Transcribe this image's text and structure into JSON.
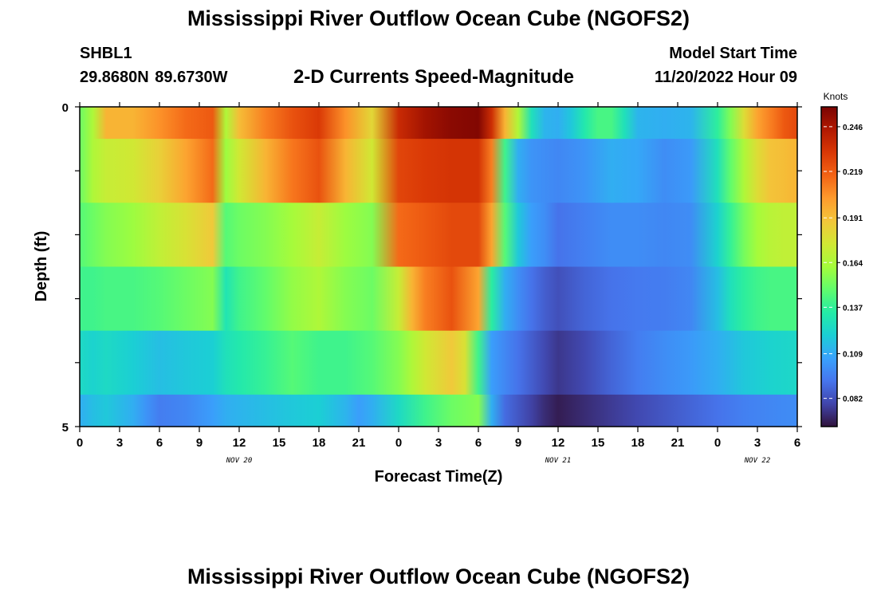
{
  "page": {
    "title": "Mississippi River Outflow Ocean Cube (NGOFS2)",
    "title_repeat": "Mississippi River Outflow Ocean Cube (NGOFS2)",
    "station": "SHBL1",
    "coordinates": "29.8680N  89.6730W",
    "subtitle": "2-D Currents Speed-Magnitude",
    "model_start_label": "Model Start Time",
    "model_start_value": "11/20/2022 Hour 09"
  },
  "chart_data": {
    "type": "heatmap",
    "title": "2-D Currents Speed-Magnitude",
    "xlabel": "Forecast Time(Z)",
    "ylabel": "Depth (ft)",
    "colorbar_label": "Knots",
    "x_tick_labels": [
      "0",
      "3",
      "6",
      "9",
      "12",
      "15",
      "18",
      "21",
      "0",
      "3",
      "6",
      "9",
      "12",
      "15",
      "18",
      "21",
      "0",
      "3",
      "6"
    ],
    "date_labels": [
      {
        "text": "NOV 20",
        "at_tick": 4
      },
      {
        "text": "NOV 21",
        "at_tick": 12
      },
      {
        "text": "NOV 22",
        "at_tick": 17
      }
    ],
    "xlim_hours": [
      0,
      54
    ],
    "y_tick_labels": [
      {
        "value": 0,
        "text": "0"
      },
      {
        "value": 5,
        "text": "5"
      }
    ],
    "ylim": [
      0,
      5
    ],
    "color_min": 0.065,
    "color_max": 0.258,
    "colorbar_ticks": [
      0.082,
      0.109,
      0.137,
      0.164,
      0.191,
      0.219,
      0.246
    ],
    "colormap": [
      "#30123b",
      "#4145ab",
      "#4675ed",
      "#39a2fc",
      "#1bcfd4",
      "#24eca6",
      "#61fc6c",
      "#a4fc3b",
      "#d1e834",
      "#f3c63a",
      "#fe9b2d",
      "#f36315",
      "#d93806",
      "#b11901",
      "#7a0402"
    ],
    "rows": [
      {
        "depth_top": 0,
        "depth_bottom": 0.5,
        "hours": [
          0,
          1,
          2,
          4,
          6,
          8,
          10,
          11,
          12,
          14,
          16,
          18,
          20,
          22,
          24,
          26,
          28,
          30,
          31,
          32,
          33,
          34,
          35,
          36,
          37,
          38,
          39,
          40,
          41,
          42,
          44,
          46,
          48,
          49,
          50,
          51,
          52,
          53,
          54
        ],
        "values": [
          0.15,
          0.165,
          0.195,
          0.195,
          0.205,
          0.215,
          0.22,
          0.165,
          0.192,
          0.21,
          0.222,
          0.23,
          0.205,
          0.182,
          0.236,
          0.248,
          0.254,
          0.256,
          0.235,
          0.195,
          0.165,
          0.128,
          0.112,
          0.11,
          0.118,
          0.132,
          0.142,
          0.142,
          0.128,
          0.112,
          0.11,
          0.112,
          0.136,
          0.155,
          0.18,
          0.2,
          0.21,
          0.22,
          0.225
        ]
      },
      {
        "depth_top": 0.5,
        "depth_bottom": 1.5,
        "hours": [
          0,
          1,
          2,
          4,
          6,
          8,
          10,
          11,
          12,
          14,
          16,
          18,
          20,
          22,
          24,
          26,
          28,
          30,
          31,
          32,
          33,
          34,
          35,
          36,
          38,
          40,
          42,
          44,
          46,
          48,
          49,
          50,
          51,
          52,
          53,
          54
        ],
        "values": [
          0.15,
          0.165,
          0.172,
          0.175,
          0.185,
          0.2,
          0.215,
          0.16,
          0.175,
          0.195,
          0.212,
          0.222,
          0.195,
          0.175,
          0.226,
          0.23,
          0.232,
          0.232,
          0.21,
          0.14,
          0.11,
          0.102,
          0.1,
          0.098,
          0.102,
          0.11,
          0.108,
          0.1,
          0.104,
          0.128,
          0.148,
          0.165,
          0.18,
          0.19,
          0.192,
          0.195
        ]
      },
      {
        "depth_top": 1.5,
        "depth_bottom": 2.5,
        "hours": [
          0,
          1,
          2,
          4,
          6,
          8,
          10,
          11,
          12,
          14,
          16,
          18,
          20,
          22,
          24,
          26,
          28,
          30,
          31,
          32,
          33,
          34,
          35,
          36,
          38,
          40,
          42,
          44,
          46,
          48,
          49,
          50,
          51,
          52,
          53,
          54
        ],
        "values": [
          0.145,
          0.15,
          0.155,
          0.16,
          0.17,
          0.178,
          0.188,
          0.145,
          0.15,
          0.155,
          0.162,
          0.172,
          0.16,
          0.155,
          0.215,
          0.22,
          0.225,
          0.225,
          0.2,
          0.145,
          0.118,
          0.105,
          0.1,
          0.092,
          0.096,
          0.1,
          0.1,
          0.098,
          0.1,
          0.122,
          0.138,
          0.152,
          0.162,
          0.168,
          0.17,
          0.17
        ]
      },
      {
        "depth_top": 2.5,
        "depth_bottom": 3.5,
        "hours": [
          0,
          1,
          2,
          4,
          6,
          8,
          10,
          11,
          12,
          14,
          16,
          18,
          20,
          22,
          24,
          25,
          26,
          28,
          30,
          31,
          32,
          33,
          34,
          35,
          36,
          38,
          40,
          42,
          44,
          46,
          48,
          49,
          50,
          51,
          52,
          53,
          54
        ],
        "values": [
          0.14,
          0.14,
          0.142,
          0.142,
          0.145,
          0.15,
          0.155,
          0.13,
          0.14,
          0.148,
          0.158,
          0.165,
          0.155,
          0.15,
          0.172,
          0.195,
          0.21,
          0.222,
          0.2,
          0.135,
          0.11,
          0.1,
          0.092,
          0.086,
          0.082,
          0.088,
          0.092,
          0.094,
          0.095,
          0.098,
          0.115,
          0.128,
          0.136,
          0.14,
          0.142,
          0.142,
          0.142
        ]
      },
      {
        "depth_top": 3.5,
        "depth_bottom": 4.5,
        "hours": [
          0,
          1,
          2,
          4,
          6,
          8,
          10,
          11,
          12,
          14,
          16,
          18,
          20,
          22,
          24,
          25,
          26,
          28,
          29,
          30,
          31,
          32,
          33,
          34,
          35,
          36,
          38,
          40,
          42,
          44,
          46,
          48,
          50,
          52,
          54
        ],
        "values": [
          0.125,
          0.122,
          0.125,
          0.12,
          0.115,
          0.118,
          0.12,
          0.128,
          0.132,
          0.138,
          0.145,
          0.14,
          0.14,
          0.145,
          0.155,
          0.165,
          0.175,
          0.188,
          0.178,
          0.14,
          0.105,
          0.098,
          0.092,
          0.086,
          0.08,
          0.075,
          0.08,
          0.088,
          0.095,
          0.1,
          0.104,
          0.11,
          0.118,
          0.122,
          0.124
        ]
      },
      {
        "depth_top": 4.5,
        "depth_bottom": 5,
        "hours": [
          0,
          1,
          2,
          4,
          5,
          6,
          8,
          10,
          11,
          12,
          14,
          16,
          18,
          20,
          21,
          22,
          24,
          26,
          28,
          30,
          31,
          32,
          33,
          34,
          35,
          36,
          38,
          40,
          42,
          44,
          46,
          48,
          50,
          52,
          54
        ],
        "values": [
          0.11,
          0.115,
          0.118,
          0.11,
          0.102,
          0.095,
          0.098,
          0.105,
          0.11,
          0.112,
          0.115,
          0.118,
          0.12,
          0.112,
          0.105,
          0.11,
          0.125,
          0.14,
          0.15,
          0.155,
          0.11,
          0.09,
          0.084,
          0.078,
          0.072,
          0.068,
          0.072,
          0.076,
          0.08,
          0.084,
          0.088,
          0.092,
          0.096,
          0.098,
          0.1
        ]
      }
    ]
  }
}
